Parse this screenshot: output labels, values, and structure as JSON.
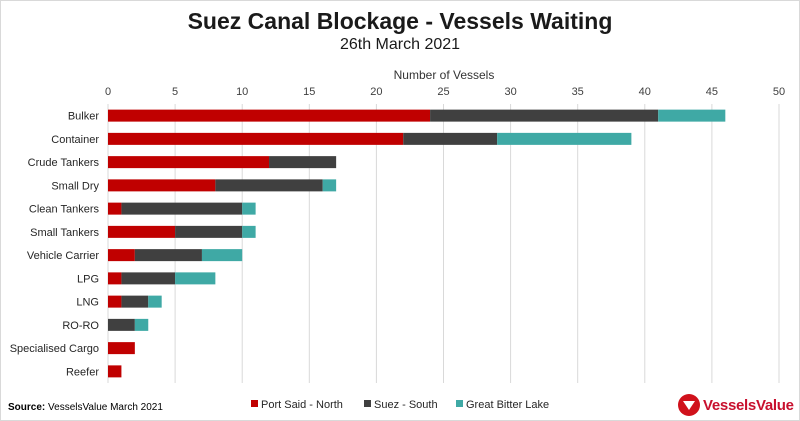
{
  "chart_data": {
    "type": "bar",
    "orientation": "horizontal",
    "stacked": true,
    "title": "Suez Canal Blockage - Vessels Waiting",
    "subtitle": "26th March 2021",
    "xlabel": "Number of Vessels",
    "ylabel": "",
    "xlim": [
      0,
      50
    ],
    "x_ticks": [
      0,
      5,
      10,
      15,
      20,
      25,
      30,
      35,
      40,
      45,
      50
    ],
    "x_axis_position": "top",
    "grid": true,
    "legend_position": "bottom",
    "categories": [
      "Bulker",
      "Container",
      "Crude Tankers",
      "Small Dry",
      "Clean Tankers",
      "Small Tankers",
      "Vehicle Carrier",
      "LPG",
      "LNG",
      "RO-RO",
      "Specialised Cargo",
      "Reefer"
    ],
    "series": [
      {
        "name": "Port Said - North",
        "color": "#c00000",
        "values": [
          24,
          22,
          12,
          8,
          1,
          5,
          2,
          1,
          1,
          0,
          2,
          1
        ]
      },
      {
        "name": "Suez - South",
        "color": "#404040",
        "values": [
          17,
          7,
          5,
          8,
          9,
          5,
          5,
          4,
          2,
          2,
          0,
          0
        ]
      },
      {
        "name": "Great Bitter Lake",
        "color": "#3fa9a5",
        "values": [
          5,
          10,
          0,
          1,
          1,
          1,
          3,
          3,
          1,
          1,
          0,
          0
        ]
      }
    ]
  },
  "source": {
    "label": "Source:",
    "text": "VesselsValue March 2021"
  },
  "logo": {
    "text": "VesselsValue",
    "color": "#c8102e"
  }
}
